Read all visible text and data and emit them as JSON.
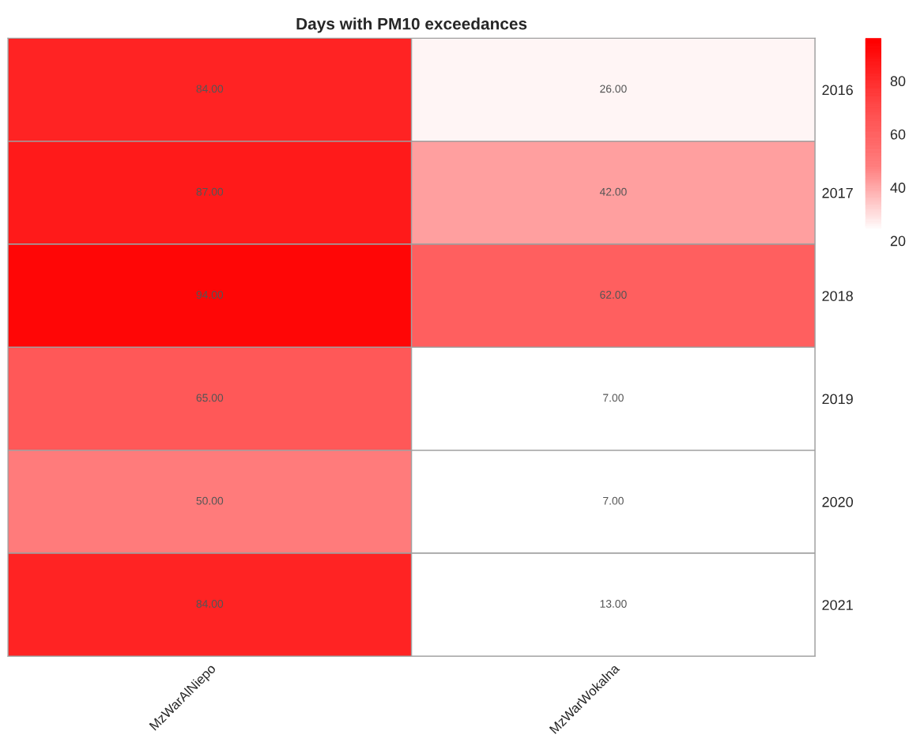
{
  "chart_data": {
    "type": "heatmap",
    "title": "Days with PM10 exceedances",
    "categories": [
      "MzWarAlNiepo",
      "MzWarWokalna"
    ],
    "y_categories": [
      "2016",
      "2017",
      "2018",
      "2019",
      "2020",
      "2021"
    ],
    "cells": [
      [
        84,
        26
      ],
      [
        87,
        42
      ],
      [
        94,
        62
      ],
      [
        65,
        7
      ],
      [
        50,
        7
      ],
      [
        84,
        13
      ]
    ],
    "cell_labels": [
      [
        "84.00",
        "26.00"
      ],
      [
        "87.00",
        "42.00"
      ],
      [
        "94.00",
        "62.00"
      ],
      [
        "65.00",
        "7.00"
      ],
      [
        "50.00",
        "7.00"
      ],
      [
        "84.00",
        "13.00"
      ]
    ],
    "colors": [
      "#ffffff",
      "#ffffff",
      "#ff8080",
      "#ff4848",
      "#ff0000"
    ],
    "clim": [
      0,
      96
    ],
    "cticks": [
      20,
      40,
      60,
      80
    ]
  }
}
